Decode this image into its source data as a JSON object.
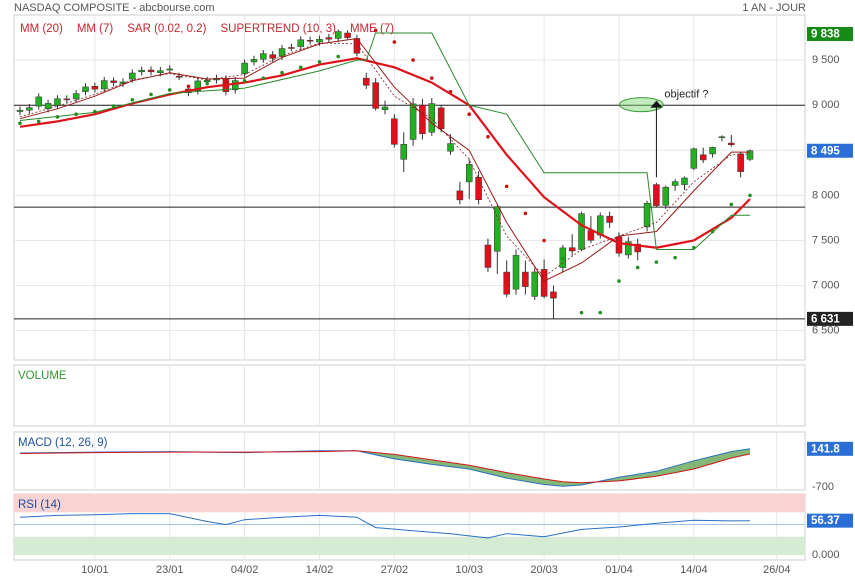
{
  "header": {
    "title": "NASDAQ COMPOSITE - abcbourse.com",
    "period": "1 AN - JOUR"
  },
  "chart_data": [
    {
      "type": "candlestick",
      "x": [
        "30/12",
        "31/12",
        "02/01",
        "03/01",
        "06/01",
        "07/01",
        "08/01",
        "09/01",
        "10/01",
        "13/01",
        "14/01",
        "15/01",
        "16/01",
        "17/01",
        "21/01",
        "22/01",
        "23/01",
        "24/01",
        "27/01",
        "28/01",
        "29/01",
        "30/01",
        "31/01",
        "03/02",
        "04/02",
        "05/02",
        "06/02",
        "07/02",
        "10/02",
        "11/02",
        "12/02",
        "13/02",
        "14/02",
        "18/02",
        "19/02",
        "20/02",
        "21/02",
        "24/02",
        "25/02",
        "26/02",
        "27/02",
        "28/02",
        "02/03",
        "03/03",
        "04/03",
        "05/03",
        "06/03",
        "09/03",
        "10/03",
        "11/03",
        "12/03",
        "13/03",
        "16/03",
        "17/03",
        "18/03",
        "19/03",
        "20/03",
        "23/03",
        "24/03",
        "25/03",
        "26/03",
        "27/03",
        "30/03",
        "31/03",
        "01/04",
        "02/04",
        "03/04",
        "06/04",
        "07/04",
        "08/04",
        "09/04",
        "13/04",
        "14/04",
        "15/04",
        "16/04",
        "17/04",
        "20/04",
        "21/04",
        "22/04"
      ],
      "open": [
        8930,
        8945,
        8990,
        8960,
        9000,
        9070,
        9070,
        9150,
        9210,
        9180,
        9270,
        9240,
        9290,
        9370,
        9390,
        9360,
        9390,
        9320,
        9180,
        9160,
        9260,
        9280,
        9290,
        9170,
        9350,
        9480,
        9510,
        9560,
        9540,
        9640,
        9650,
        9720,
        9700,
        9750,
        9740,
        9800,
        9740,
        9300,
        9250,
        8950,
        8850,
        8400,
        8620,
        9000,
        8700,
        8970,
        8490,
        8050,
        8150,
        8200,
        7450,
        7380,
        7150,
        6960,
        7150,
        6880,
        7180,
        6930,
        7200,
        7420,
        7400,
        7610,
        7560,
        7770,
        7540,
        7340,
        7460,
        7650,
        8120,
        7890,
        8110,
        8120,
        8300,
        8450,
        8460,
        8640,
        8580,
        8460,
        8400
      ],
      "high": [
        8985,
        9013,
        9132,
        9060,
        9111,
        9110,
        9169,
        9243,
        9250,
        9313,
        9310,
        9298,
        9397,
        9428,
        9430,
        9423,
        9442,
        9360,
        9220,
        9309,
        9315,
        9338,
        9330,
        9313,
        9507,
        9548,
        9612,
        9600,
        9668,
        9680,
        9765,
        9760,
        9771,
        9790,
        9838,
        9830,
        9780,
        9360,
        9300,
        9050,
        8900,
        8700,
        9080,
        9070,
        9080,
        9000,
        8680,
        8150,
        8400,
        8270,
        7520,
        7890,
        7280,
        7400,
        7280,
        7200,
        7290,
        7000,
        7450,
        7570,
        7820,
        7770,
        7810,
        7820,
        7590,
        7540,
        7520,
        7940,
        8140,
        8110,
        8180,
        8210,
        8530,
        8530,
        8540,
        8665,
        8670,
        8480,
        8510
      ],
      "low": [
        8890,
        8905,
        8950,
        8920,
        8960,
        9030,
        9030,
        9110,
        9140,
        9140,
        9210,
        9200,
        9250,
        9330,
        9330,
        9320,
        9350,
        9280,
        9100,
        9120,
        9220,
        9240,
        9110,
        9130,
        9310,
        9440,
        9470,
        9480,
        9500,
        9600,
        9610,
        9670,
        9660,
        9690,
        9700,
        9720,
        9540,
        9180,
        8940,
        8900,
        8530,
        8260,
        8550,
        8620,
        8660,
        8700,
        8450,
        7900,
        7960,
        7900,
        7150,
        7130,
        6870,
        6900,
        6900,
        6840,
        6860,
        6631,
        7150,
        7330,
        7380,
        7470,
        7520,
        7640,
        7320,
        7300,
        7280,
        7600,
        7870,
        7850,
        8050,
        8060,
        8280,
        8360,
        8420,
        8600,
        8540,
        8200,
        8380
      ],
      "close": [
        8945,
        8973,
        9092,
        9020,
        9071,
        9068,
        9129,
        9203,
        9178,
        9273,
        9251,
        9258,
        9357,
        9388,
        9370,
        9383,
        9402,
        9314,
        9139,
        9269,
        9275,
        9298,
        9150,
        9273,
        9467,
        9508,
        9572,
        9520,
        9628,
        9638,
        9725,
        9711,
        9731,
        9732,
        9817,
        9750,
        9576,
        9221,
        8965,
        8980,
        8566,
        8567,
        9015,
        8684,
        9018,
        8738,
        8575,
        7950,
        8344,
        7952,
        7201,
        7875,
        6904,
        7335,
        6989,
        7151,
        6880,
        6861,
        7418,
        7384,
        7798,
        7502,
        7774,
        7700,
        7360,
        7487,
        7373,
        7913,
        7887,
        8091,
        8153,
        8193,
        8516,
        8393,
        8532,
        8650,
        8561,
        8263,
        8495
      ],
      "up_color": "#22b022",
      "down_color": "#e0101a",
      "ylim": [
        6175,
        10000
      ],
      "yticks": [
        {
          "value": 9500,
          "label": "9 500"
        },
        {
          "value": 9000,
          "label": "9 000"
        },
        {
          "value": 8500,
          "label": "8 500"
        },
        {
          "value": 8000,
          "label": "8 000"
        },
        {
          "value": 7500,
          "label": "7 500"
        },
        {
          "value": 7000,
          "label": "7 000"
        },
        {
          "value": 6500,
          "label": "6 500"
        }
      ],
      "xticks": [
        "10/01",
        "23/01",
        "04/02",
        "14/02",
        "27/02",
        "10/03",
        "20/03",
        "01/04",
        "14/04",
        "26/04"
      ],
      "grid": true,
      "indicators": [
        {
          "name": "MM (20)",
          "color": "#e0101a",
          "style": "line",
          "width": 2.2,
          "x": [
            "30/12",
            "06/01",
            "10/01",
            "16/01",
            "23/01",
            "29/01",
            "04/02",
            "10/02",
            "14/02",
            "21/02",
            "27/02",
            "04/03",
            "10/03",
            "16/03",
            "20/03",
            "26/03",
            "01/04",
            "07/04",
            "14/04",
            "20/04",
            "22/04"
          ],
          "values": [
            8760,
            8820,
            8900,
            9020,
            9120,
            9200,
            9250,
            9330,
            9450,
            9520,
            9420,
            9250,
            9000,
            8450,
            7980,
            7670,
            7470,
            7420,
            7500,
            7750,
            7960
          ]
        },
        {
          "name": "MM (7)",
          "color": "#9a1a1a",
          "style": "line",
          "width": 1,
          "x": [
            "30/12",
            "06/01",
            "10/01",
            "16/01",
            "23/01",
            "29/01",
            "04/02",
            "10/02",
            "14/02",
            "21/02",
            "27/02",
            "04/03",
            "10/03",
            "16/03",
            "20/03",
            "26/03",
            "01/04",
            "07/04",
            "14/04",
            "20/04",
            "22/04"
          ],
          "values": [
            8850,
            8960,
            9100,
            9270,
            9360,
            9290,
            9300,
            9530,
            9680,
            9740,
            9200,
            8800,
            8500,
            7700,
            7050,
            7250,
            7550,
            7600,
            8050,
            8480,
            8480
          ]
        },
        {
          "name": "SAR (0.02, 0.2)",
          "color": "#1f8f1f",
          "alt_color": "#cc1111",
          "style": "dots",
          "x": [
            "30/12",
            "02/01",
            "06/01",
            "08/01",
            "10/01",
            "14/01",
            "16/01",
            "21/01",
            "23/01",
            "27/01",
            "29/01",
            "31/01",
            "04/02",
            "06/02",
            "10/02",
            "12/02",
            "14/02",
            "19/02",
            "21/02",
            "25/02",
            "27/02",
            "02/03",
            "04/03",
            "06/03",
            "10/03",
            "12/03",
            "16/03",
            "18/03",
            "20/03",
            "24/03",
            "26/03",
            "30/03",
            "01/04",
            "03/04",
            "07/04",
            "09/04",
            "14/04",
            "16/04",
            "20/04",
            "22/04"
          ],
          "values": [
            8800,
            8820,
            8870,
            8900,
            8930,
            8990,
            9060,
            9120,
            9170,
            9210,
            9240,
            9260,
            9270,
            9300,
            9360,
            9420,
            9480,
            9540,
            9600,
            9830,
            9700,
            9500,
            9300,
            9150,
            8900,
            8650,
            8100,
            7800,
            7500,
            7300,
            6700,
            6700,
            7050,
            7200,
            7260,
            7310,
            7420,
            7600,
            7900,
            8000
          ]
        },
        {
          "name": "SUPERTREND (10, 3)",
          "color": "#2a8a2a",
          "style": "line",
          "width": 1,
          "x": [
            "30/12",
            "10/01",
            "23/01",
            "04/02",
            "14/02",
            "21/02",
            "24/02",
            "25/02",
            "04/03",
            "10/03",
            "16/03",
            "20/03",
            "01/04",
            "06/04",
            "07/04",
            "14/04",
            "20/04",
            "22/04"
          ],
          "values": [
            8830,
            8920,
            9130,
            9190,
            9380,
            9500,
            9500,
            9800,
            9800,
            9000,
            8900,
            8250,
            8250,
            8250,
            7400,
            7400,
            7780,
            7780
          ]
        },
        {
          "name": "MME (7)",
          "color": "#7a2020",
          "style": "dashed",
          "width": 0.8,
          "x": [
            "30/12",
            "06/01",
            "10/01",
            "16/01",
            "23/01",
            "29/01",
            "04/02",
            "10/02",
            "14/02",
            "21/02",
            "27/02",
            "04/03",
            "10/03",
            "16/03",
            "20/03",
            "26/03",
            "01/04",
            "07/04",
            "14/04",
            "20/04",
            "22/04"
          ],
          "values": [
            8870,
            8990,
            9120,
            9280,
            9350,
            9280,
            9340,
            9550,
            9690,
            9680,
            9100,
            8850,
            8400,
            7550,
            7100,
            7400,
            7550,
            7700,
            8150,
            8450,
            8460
          ]
        }
      ],
      "hlines": [
        9000,
        7870,
        6631
      ],
      "max_label": "9 838",
      "min_label": "6 631",
      "last_label": "8 495",
      "annotation": {
        "text": "objectif ?",
        "x": "07/04",
        "from": 8200,
        "to": 9050
      }
    },
    {
      "type": "bar",
      "title": "VOLUME"
    },
    {
      "type": "line",
      "title": "MACD (12, 26, 9)",
      "series": [
        {
          "color": "#2b6fc4",
          "x": [
            "30/12",
            "10/01",
            "23/01",
            "04/02",
            "14/02",
            "21/02",
            "27/02",
            "04/03",
            "10/03",
            "16/03",
            "20/03",
            "24/03",
            "26/03",
            "01/04",
            "07/04",
            "14/04",
            "20/04",
            "22/04"
          ],
          "values": [
            50,
            70,
            80,
            60,
            100,
            100,
            -80,
            -200,
            -300,
            -500,
            -640,
            -680,
            -650,
            -480,
            -350,
            -120,
            80,
            141.8
          ]
        },
        {
          "color": "#d01818",
          "x": [
            "30/12",
            "10/01",
            "23/01",
            "04/02",
            "14/02",
            "21/02",
            "27/02",
            "04/03",
            "10/03",
            "16/03",
            "20/03",
            "24/03",
            "26/03",
            "01/04",
            "07/04",
            "14/04",
            "20/04",
            "22/04"
          ],
          "values": [
            40,
            60,
            70,
            70,
            80,
            100,
            20,
            -100,
            -220,
            -380,
            -520,
            -580,
            -600,
            -560,
            -460,
            -300,
            -60,
            30
          ]
        }
      ],
      "fill_color": "#5aa04a",
      "ylim": [
        -760,
        510
      ],
      "yticks": [
        -700
      ]
    },
    {
      "type": "line",
      "title": "RSI (14)",
      "series": [
        {
          "color": "#2b6fc4",
          "x": [
            "30/12",
            "06/01",
            "10/01",
            "16/01",
            "23/01",
            "29/01",
            "31/01",
            "04/02",
            "10/02",
            "14/02",
            "21/02",
            "25/02",
            "02/03",
            "06/03",
            "12/03",
            "16/03",
            "20/03",
            "26/03",
            "01/04",
            "07/04",
            "14/04",
            "20/04",
            "22/04"
          ],
          "values": [
            62,
            65,
            66,
            68,
            68,
            55,
            50,
            58,
            62,
            65,
            62,
            45,
            40,
            35,
            28,
            35,
            30,
            42,
            46,
            52,
            57,
            56,
            56.37
          ]
        }
      ],
      "bands": [
        {
          "from": 70,
          "to": 100,
          "color": "#f9d2d2"
        },
        {
          "from": 0,
          "to": 30,
          "color": "#d5ebd3"
        }
      ],
      "hlines": [
        50
      ],
      "ylim": [
        -8,
        100
      ],
      "yticks": [
        {
          "value": 0,
          "label": "0.000"
        }
      ]
    }
  ]
}
